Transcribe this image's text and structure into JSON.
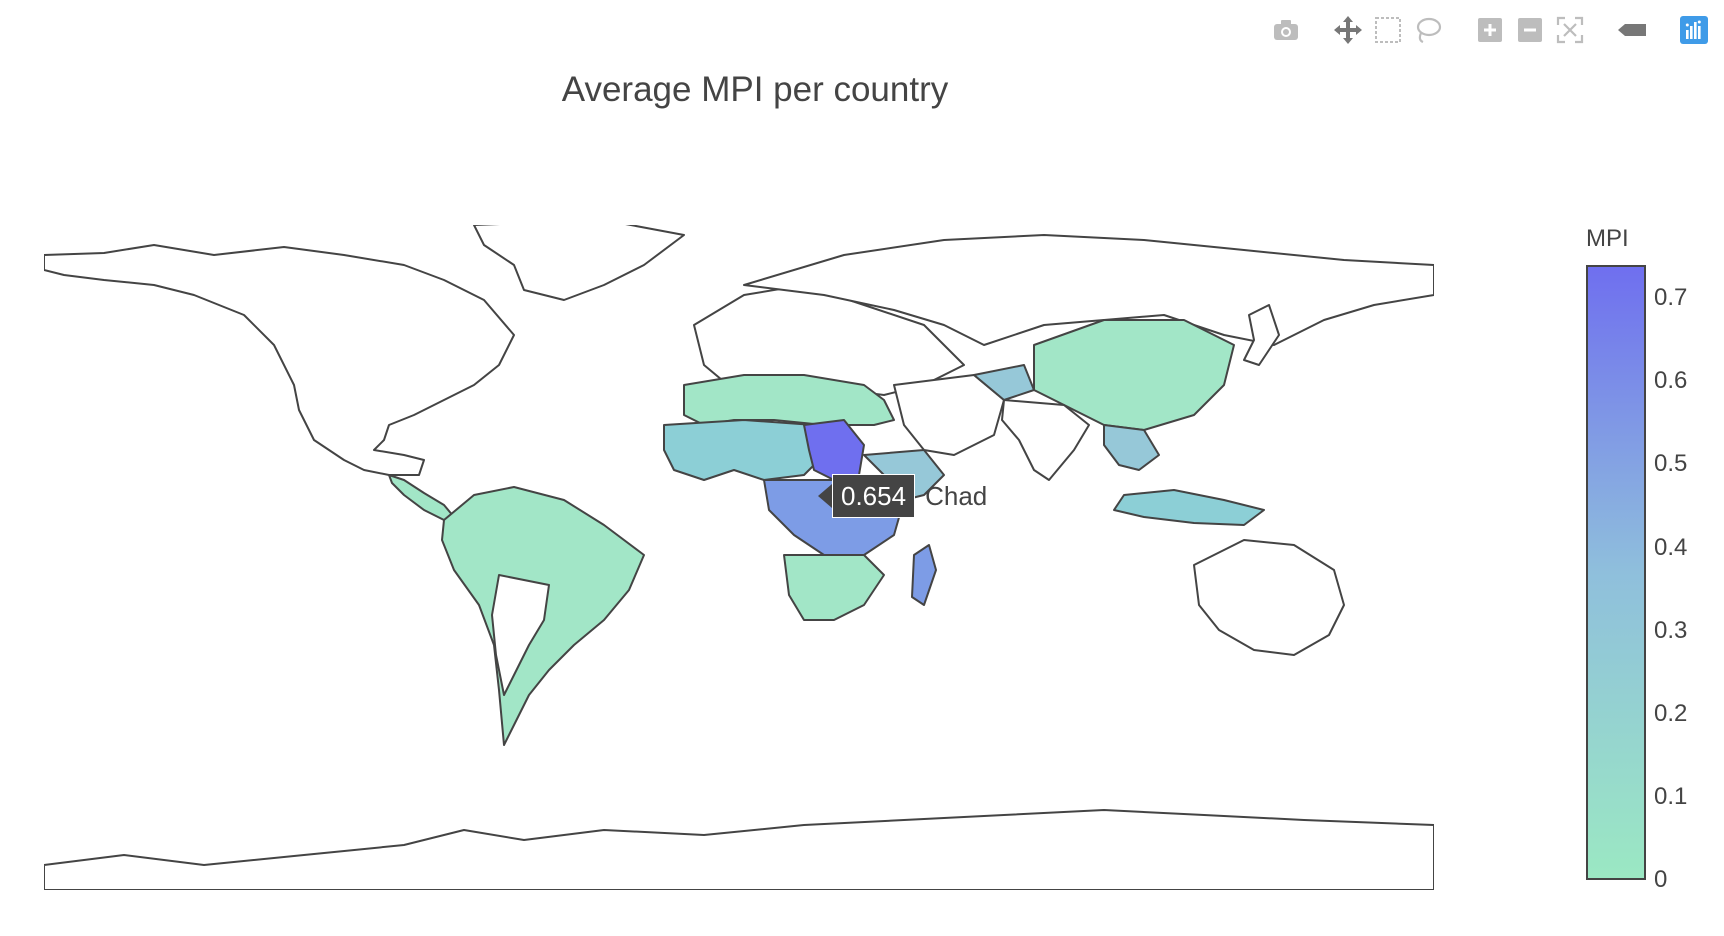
{
  "title": "Average MPI per country",
  "modebar": {
    "buttons": [
      {
        "name": "camera-icon",
        "label": "Download plot as a png"
      },
      {
        "name": "pan-icon",
        "label": "Pan"
      },
      {
        "name": "box-select-icon",
        "label": "Box Select"
      },
      {
        "name": "lasso-select-icon",
        "label": "Lasso Select"
      },
      {
        "name": "zoom-in-icon",
        "label": "Zoom in"
      },
      {
        "name": "zoom-out-icon",
        "label": "Zoom out"
      },
      {
        "name": "reset-view-icon",
        "label": "Reset"
      },
      {
        "name": "hover-closest-icon",
        "label": "Show closest data on hover"
      },
      {
        "name": "plotly-logo-icon",
        "label": "Produced with Plotly"
      }
    ]
  },
  "colorbar": {
    "title": "MPI",
    "ticks": [
      "0.7",
      "0.6",
      "0.5",
      "0.4",
      "0.3",
      "0.2",
      "0.1",
      "0"
    ],
    "range": [
      0,
      0.74
    ],
    "colors": {
      "low": "#9be8c3",
      "mid": "#8fbfdc",
      "high": "#6f6fef"
    }
  },
  "tooltip": {
    "value": "0.654",
    "country": "Chad"
  },
  "chart_data": {
    "type": "choropleth",
    "colorbar_title": "MPI",
    "zrange": [
      0,
      0.74
    ],
    "countries": [
      {
        "name": "Chad",
        "value": 0.654
      }
    ]
  }
}
